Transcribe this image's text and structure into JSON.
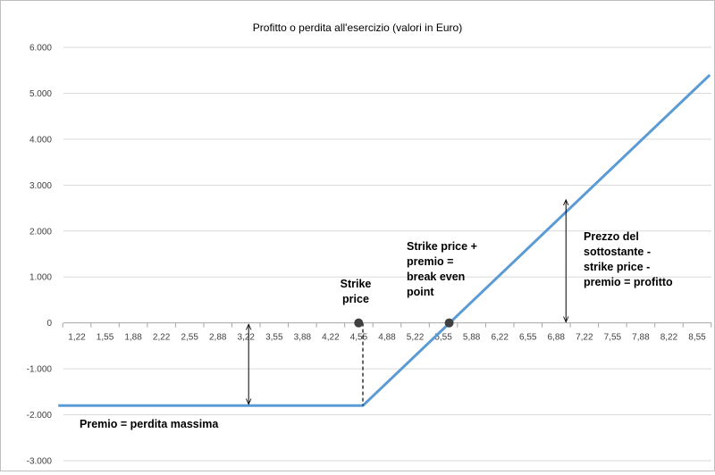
{
  "chart_data": {
    "type": "line",
    "title": "Profitto o perdita all'esercizio (valori in Euro)",
    "xlabel": "",
    "ylabel": "",
    "x_ticks": [
      "1,22",
      "1,55",
      "1,88",
      "2,22",
      "2,55",
      "2,88",
      "3,22",
      "3,55",
      "3,88",
      "4,22",
      "4,55",
      "4,88",
      "5,22",
      "5,55",
      "5,88",
      "6,22",
      "6,55",
      "6,88",
      "7,22",
      "7,55",
      "7,88",
      "8,22",
      "8,55"
    ],
    "y_ticks": [
      "6.000",
      "5.000",
      "4.000",
      "3.000",
      "2.000",
      "1.000",
      "0",
      "-1.000",
      "-2.000",
      "-3.000"
    ],
    "ylim": [
      -3000,
      6000
    ],
    "xlim": [
      1.22,
      8.55
    ],
    "grid": "horizontal",
    "legend": "none",
    "series": [
      {
        "color": "#5b9bd5",
        "points": [
          [
            1.0,
            -1800
          ],
          [
            4.6,
            -1800
          ],
          [
            8.7,
            5400
          ]
        ]
      }
    ],
    "markers": [
      {
        "x": 4.55,
        "y": 0
      },
      {
        "x": 5.62,
        "y": 0
      }
    ],
    "annotations": {
      "strike": [
        "Strike",
        "price"
      ],
      "breakeven": [
        "Strike price +",
        "premio =",
        "break even",
        "point"
      ],
      "profit": [
        "Prezzo del",
        "sottostante -",
        "strike price -",
        "premio = profitto"
      ],
      "premium": "Premio = perdita massima"
    }
  }
}
